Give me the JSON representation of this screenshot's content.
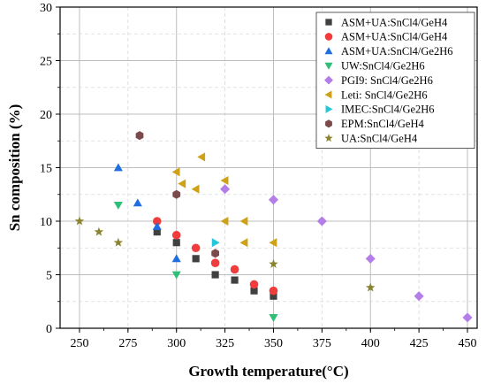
{
  "chart_data": {
    "type": "scatter",
    "xlabel": "Growth temperature(°C)",
    "ylabel": "Sn composition (%)",
    "xlim": [
      240,
      455
    ],
    "ylim": [
      0,
      30
    ],
    "xticks": [
      250,
      275,
      300,
      325,
      350,
      375,
      400,
      425,
      450
    ],
    "yticks": [
      0,
      5,
      10,
      15,
      20,
      25,
      30
    ],
    "grid": true,
    "legend_position": "top-right",
    "series": [
      {
        "name": "ASM+UA:SnCl4/GeH4",
        "marker": "square",
        "color": "#404040",
        "points": [
          [
            290,
            9
          ],
          [
            300,
            8
          ],
          [
            310,
            6.5
          ],
          [
            320,
            5
          ],
          [
            330,
            4.5
          ],
          [
            340,
            3.5
          ],
          [
            350,
            3
          ]
        ]
      },
      {
        "name": "ASM+UA:SnCl4/GeH4",
        "marker": "circle",
        "color": "#f03c3c",
        "points": [
          [
            290,
            10
          ],
          [
            300,
            8.7
          ],
          [
            310,
            7.5
          ],
          [
            320,
            6.1
          ],
          [
            330,
            5.5
          ],
          [
            340,
            4.1
          ],
          [
            350,
            3.5
          ]
        ]
      },
      {
        "name": "ASM+UA:SnCl4/Ge2H6",
        "marker": "triangle-up",
        "color": "#1f6fe0",
        "points": [
          [
            270,
            15
          ],
          [
            280,
            11.7
          ],
          [
            290,
            9.5
          ],
          [
            300,
            6.5
          ]
        ]
      },
      {
        "name": "UW:SnCl4/Ge2H6",
        "marker": "triangle-down",
        "color": "#2fbf77",
        "points": [
          [
            270,
            11.5
          ],
          [
            300,
            5
          ],
          [
            350,
            1
          ]
        ]
      },
      {
        "name": "PGI9: SnCl4/Ge2H6",
        "marker": "diamond",
        "color": "#b47ee8",
        "points": [
          [
            325,
            13
          ],
          [
            350,
            12
          ],
          [
            375,
            10
          ],
          [
            400,
            6.5
          ],
          [
            425,
            3
          ],
          [
            450,
            1
          ]
        ]
      },
      {
        "name": "Leti: SnCl4/Ge2H6",
        "marker": "triangle-left",
        "color": "#cfa116",
        "points": [
          [
            300,
            14.6
          ],
          [
            303,
            13.5
          ],
          [
            310,
            13
          ],
          [
            313,
            16
          ],
          [
            325,
            13.8
          ],
          [
            325,
            10
          ],
          [
            335,
            10
          ],
          [
            335,
            8
          ],
          [
            350,
            8
          ]
        ]
      },
      {
        "name": "IMEC:SnCl4/Ge2H6",
        "marker": "triangle-right",
        "color": "#25c7d9",
        "points": [
          [
            320,
            8
          ]
        ]
      },
      {
        "name": "EPM:SnCl4/GeH4",
        "marker": "hexagon",
        "color": "#7b4a4a",
        "points": [
          [
            281,
            18
          ],
          [
            300,
            12.5
          ],
          [
            320,
            7
          ]
        ]
      },
      {
        "name": "UA:SnCl4/GeH4",
        "marker": "star",
        "color": "#8a8430",
        "points": [
          [
            250,
            10
          ],
          [
            260,
            9
          ],
          [
            270,
            8
          ],
          [
            350,
            6
          ],
          [
            400,
            3.8
          ]
        ]
      }
    ]
  }
}
